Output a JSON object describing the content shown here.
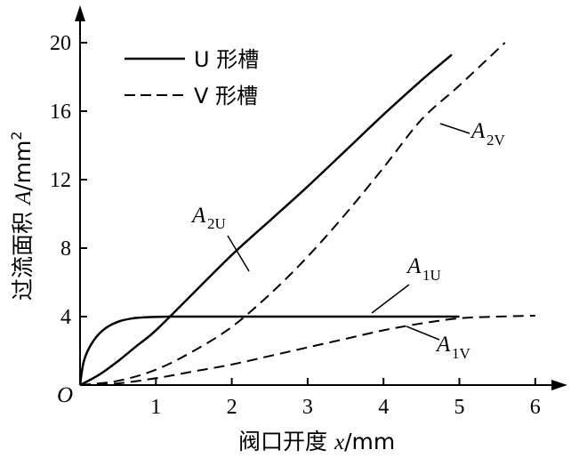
{
  "chart_data": {
    "type": "line",
    "xlabel": {
      "main": "阀口开度 ",
      "var": "x",
      "unit": "/mm"
    },
    "ylabel": {
      "main": "过流面积 ",
      "var": "A",
      "unit": "/mm",
      "sup": "2"
    },
    "origin_label": "O",
    "xlim": [
      0,
      6
    ],
    "ylim": [
      0,
      20
    ],
    "x_ticks": [
      1,
      2,
      3,
      4,
      5,
      6
    ],
    "y_ticks": [
      4,
      8,
      12,
      16,
      20
    ],
    "grid": false,
    "legend_position": "top-left",
    "legend": [
      {
        "label": "U 形槽",
        "style": "solid"
      },
      {
        "label": "V 形槽",
        "style": "dashed"
      }
    ],
    "series": [
      {
        "name": "A2U",
        "style": "solid",
        "x": [
          0,
          0.25,
          0.5,
          0.75,
          1.0,
          1.5,
          2.0,
          2.5,
          3.0,
          3.5,
          4.0,
          4.5,
          4.9
        ],
        "y": [
          0,
          0.6,
          1.4,
          2.3,
          3.2,
          5.4,
          7.6,
          9.6,
          11.6,
          13.7,
          15.8,
          17.8,
          19.3
        ]
      },
      {
        "name": "A2V",
        "style": "dashed",
        "x": [
          0,
          0.5,
          1.0,
          1.5,
          2.0,
          2.5,
          3.0,
          3.5,
          4.0,
          4.5,
          5.0,
          5.6
        ],
        "y": [
          0,
          0.25,
          0.9,
          2.0,
          3.4,
          5.3,
          7.5,
          10.0,
          12.7,
          15.5,
          17.5,
          20.0
        ]
      },
      {
        "name": "A1U",
        "style": "solid",
        "x": [
          0,
          0.05,
          0.15,
          0.3,
          0.5,
          0.7,
          0.9,
          1.2,
          2.0,
          3.0,
          4.0,
          5.0
        ],
        "y": [
          0,
          1.4,
          2.4,
          3.2,
          3.7,
          3.9,
          3.97,
          4.0,
          4.0,
          4.0,
          4.0,
          4.0
        ]
      },
      {
        "name": "A1V",
        "style": "dashed",
        "x": [
          0,
          0.5,
          1.0,
          1.5,
          2.0,
          2.5,
          3.0,
          3.5,
          4.0,
          4.5,
          5.0,
          5.5,
          6.0
        ],
        "y": [
          0,
          0.1,
          0.4,
          0.8,
          1.2,
          1.7,
          2.2,
          2.7,
          3.2,
          3.6,
          3.9,
          4.0,
          4.05
        ]
      }
    ],
    "annotations": [
      {
        "id": "A2U",
        "main": "A",
        "sub": "2U"
      },
      {
        "id": "A2V",
        "main": "A",
        "sub": "2V"
      },
      {
        "id": "A1U",
        "main": "A",
        "sub": "1U"
      },
      {
        "id": "A1V",
        "main": "A",
        "sub": "1V"
      }
    ]
  }
}
